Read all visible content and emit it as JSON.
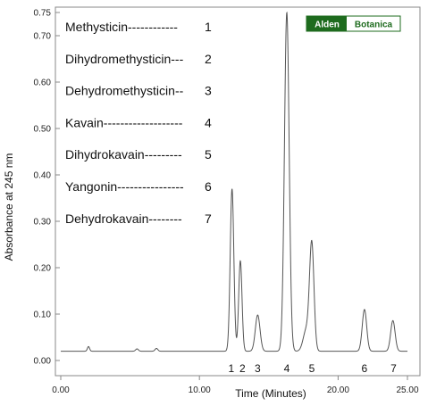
{
  "chart_data": {
    "type": "line",
    "xlabel": "Time (Minutes)",
    "ylabel": "Absorbance at 245 nm",
    "xlim": [
      0,
      25
    ],
    "ylim": [
      -0.02,
      0.78
    ],
    "x_ticks": [
      0,
      10,
      20,
      25
    ],
    "x_tick_labels": [
      "0.00",
      "10.00",
      "20.00",
      "25.00"
    ],
    "y_ticks": [
      0.0,
      0.1,
      0.2,
      0.3,
      0.4,
      0.5,
      0.6,
      0.7,
      0.75
    ],
    "y_tick_labels": [
      "0.00",
      "0.10",
      "0.20",
      "0.30",
      "0.40",
      "0.50",
      "0.60",
      "0.70",
      "0.75"
    ],
    "grid": false,
    "baseline": 0.02,
    "series": [
      {
        "color": "#555555",
        "peaks": [
          {
            "x": 2.0,
            "height": 0.01,
            "width": 0.08
          },
          {
            "x": 5.5,
            "height": 0.005,
            "width": 0.1
          },
          {
            "x": 6.9,
            "height": 0.006,
            "width": 0.1
          },
          {
            "x": 12.35,
            "height": 0.35,
            "width": 0.13
          },
          {
            "x": 12.95,
            "height": 0.195,
            "width": 0.12
          },
          {
            "x": 14.2,
            "height": 0.078,
            "width": 0.17
          },
          {
            "x": 16.3,
            "height": 0.73,
            "width": 0.17
          },
          {
            "x": 17.7,
            "height": 0.045,
            "width": 0.22
          },
          {
            "x": 18.1,
            "height": 0.23,
            "width": 0.16
          },
          {
            "x": 21.9,
            "height": 0.09,
            "width": 0.16
          },
          {
            "x": 23.95,
            "height": 0.066,
            "width": 0.16
          }
        ]
      }
    ],
    "peak_labels": [
      {
        "label": "1",
        "x": 12.3
      },
      {
        "label": "2",
        "x": 13.1
      },
      {
        "label": "3",
        "x": 14.2
      },
      {
        "label": "4",
        "x": 16.3
      },
      {
        "label": "5",
        "x": 18.1
      },
      {
        "label": "6",
        "x": 21.9
      },
      {
        "label": "7",
        "x": 24.0
      }
    ],
    "legend": [
      {
        "text": "Methysticin------------",
        "num": "1"
      },
      {
        "text": "Dihydromethysticin---",
        "num": "2"
      },
      {
        "text": "Dehydromethysticin--",
        "num": "3"
      },
      {
        "text": "Kavain-------------------",
        "num": "4"
      },
      {
        "text": "Dihydrokavain---------",
        "num": "5"
      },
      {
        "text": "Yangonin----------------",
        "num": "6"
      },
      {
        "text": "Dehydrokavain--------",
        "num": "7"
      }
    ],
    "legend_placement": "top-left"
  },
  "logo": {
    "part1": "Alden",
    "part2": "Botanica",
    "color": "#1e6b1e"
  }
}
